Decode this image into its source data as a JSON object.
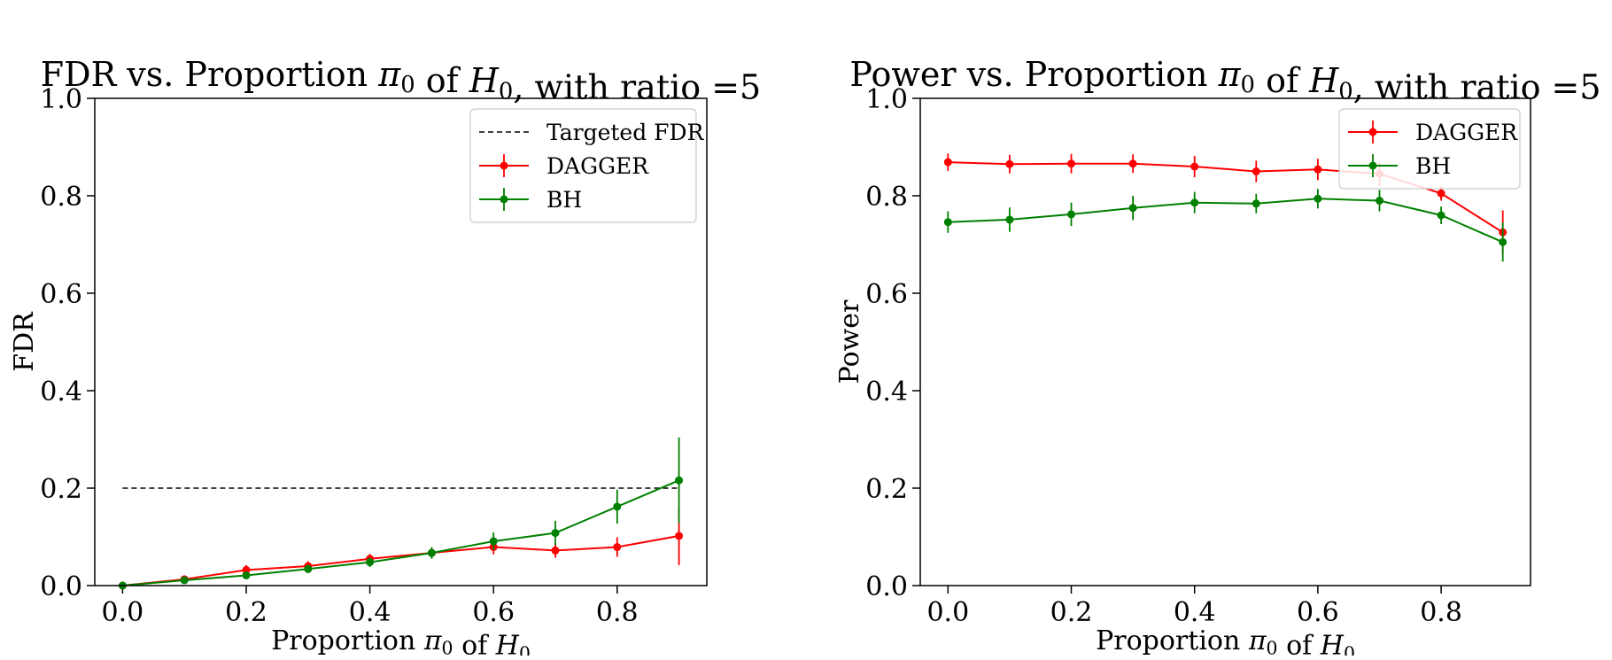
{
  "chart_data": [
    {
      "type": "line",
      "title": "FDR vs. Proportion π₀ of H₀, with ratio =5",
      "xlabel": "Proportion π₀ of H₀",
      "ylabel": "FDR",
      "xlim": [
        -0.045,
        0.945
      ],
      "ylim": [
        0.0,
        1.0
      ],
      "xticks": [
        "0.0",
        "0.2",
        "0.4",
        "0.6",
        "0.8"
      ],
      "yticks": [
        "0.0",
        "0.2",
        "0.4",
        "0.6",
        "0.8",
        "1.0"
      ],
      "grid": false,
      "legend_position": "top-right",
      "reference_line": {
        "name": "Targeted FDR",
        "y": 0.2,
        "x_range": [
          0.0,
          0.9
        ],
        "style": "dashed",
        "color": "#000000"
      },
      "series": [
        {
          "name": "DAGGER",
          "color": "#ff0000",
          "x": [
            0.0,
            0.1,
            0.2,
            0.3,
            0.4,
            0.5,
            0.6,
            0.7,
            0.8,
            0.9
          ],
          "y": [
            0.0,
            0.013,
            0.032,
            0.04,
            0.055,
            0.067,
            0.079,
            0.072,
            0.079,
            0.102
          ],
          "err": [
            0.0,
            0.005,
            0.01,
            0.01,
            0.01,
            0.01,
            0.015,
            0.015,
            0.02,
            0.06
          ]
        },
        {
          "name": "BH",
          "color": "#008000",
          "x": [
            0.0,
            0.1,
            0.2,
            0.3,
            0.4,
            0.5,
            0.6,
            0.7,
            0.8,
            0.9
          ],
          "y": [
            0.0,
            0.011,
            0.021,
            0.034,
            0.048,
            0.067,
            0.091,
            0.108,
            0.162,
            0.216
          ],
          "err": [
            0.0,
            0.004,
            0.007,
            0.008,
            0.01,
            0.012,
            0.018,
            0.025,
            0.035,
            0.088
          ]
        }
      ]
    },
    {
      "type": "line",
      "title": "Power vs. Proportion π₀ of H₀, with ratio =5",
      "xlabel": "Proportion π₀ of H₀",
      "ylabel": "Power",
      "xlim": [
        -0.045,
        0.945
      ],
      "ylim": [
        0.0,
        1.0
      ],
      "xticks": [
        "0.0",
        "0.2",
        "0.4",
        "0.6",
        "0.8"
      ],
      "yticks": [
        "0.0",
        "0.2",
        "0.4",
        "0.6",
        "0.8",
        "1.0"
      ],
      "grid": false,
      "legend_position": "top-right",
      "series": [
        {
          "name": "DAGGER",
          "color": "#ff0000",
          "x": [
            0.0,
            0.1,
            0.2,
            0.3,
            0.4,
            0.5,
            0.6,
            0.7,
            0.8,
            0.9
          ],
          "y": [
            0.869,
            0.865,
            0.866,
            0.866,
            0.86,
            0.85,
            0.854,
            0.845,
            0.805,
            0.725
          ],
          "err": [
            0.018,
            0.019,
            0.02,
            0.019,
            0.022,
            0.022,
            0.022,
            0.025,
            0.015,
            0.045
          ]
        },
        {
          "name": "BH",
          "color": "#008000",
          "x": [
            0.0,
            0.1,
            0.2,
            0.3,
            0.4,
            0.5,
            0.6,
            0.7,
            0.8,
            0.9
          ],
          "y": [
            0.746,
            0.751,
            0.762,
            0.775,
            0.786,
            0.784,
            0.794,
            0.79,
            0.76,
            0.705
          ],
          "err": [
            0.022,
            0.025,
            0.024,
            0.025,
            0.022,
            0.02,
            0.02,
            0.022,
            0.018,
            0.04
          ]
        }
      ]
    }
  ]
}
